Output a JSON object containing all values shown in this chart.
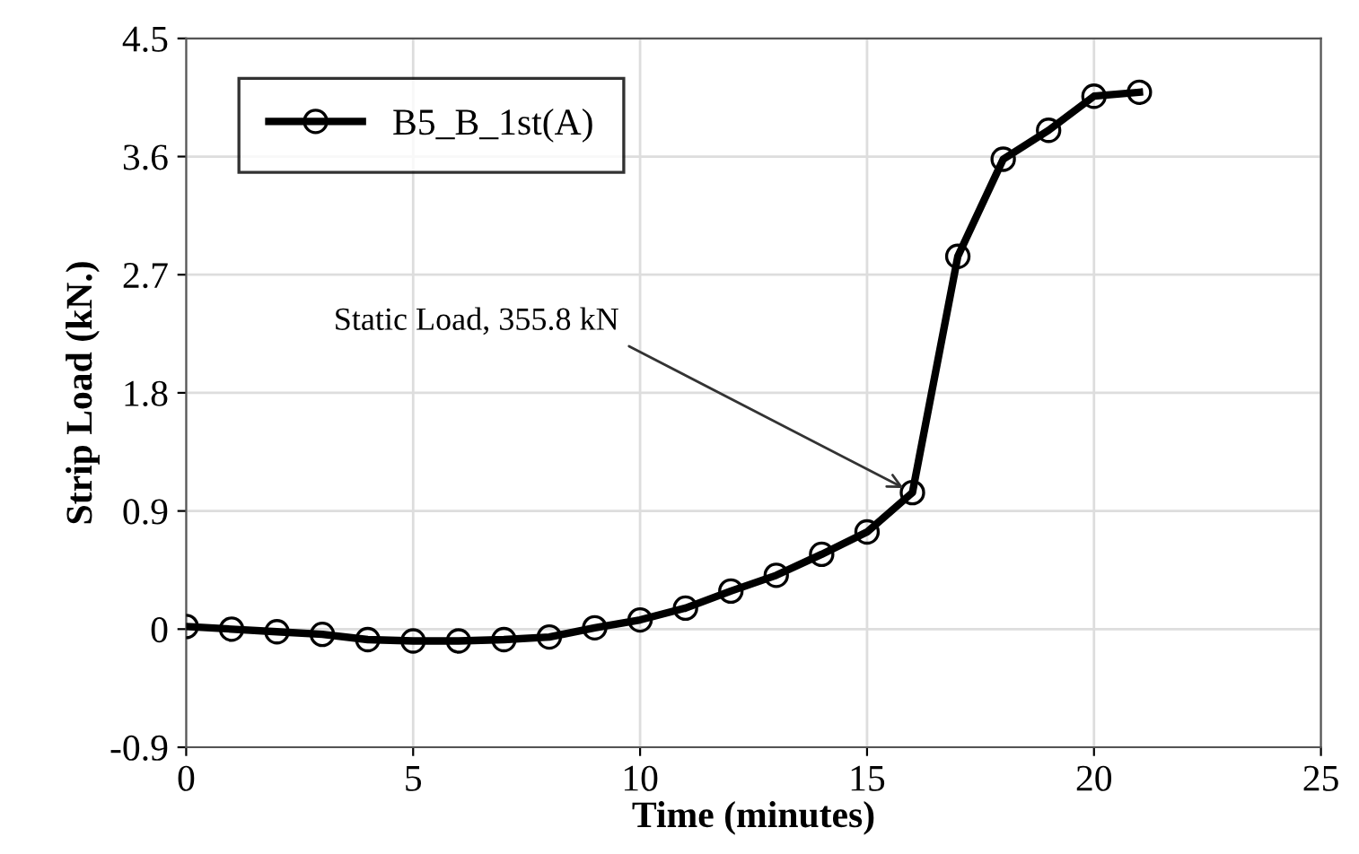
{
  "chart_data": {
    "type": "line",
    "xlabel": "Time (minutes)",
    "ylabel": "Strip Load (kN.)",
    "x": [
      0,
      1,
      2,
      3,
      4,
      5,
      6,
      7,
      8,
      9,
      10,
      11,
      12,
      13,
      14,
      15,
      16,
      17,
      18,
      19,
      20,
      21
    ],
    "series": [
      {
        "name": "B5_B_1st(A)",
        "color": "#000000",
        "values": [
          0.02,
          0.0,
          -0.02,
          -0.04,
          -0.08,
          -0.09,
          -0.09,
          -0.08,
          -0.06,
          0.01,
          0.07,
          0.16,
          0.29,
          0.41,
          0.57,
          0.74,
          1.04,
          2.84,
          3.58,
          3.8,
          4.06,
          4.09
        ]
      }
    ],
    "xlim": [
      0,
      25
    ],
    "xticks": [
      0,
      5,
      10,
      15,
      20,
      25
    ],
    "ylim": [
      -0.9,
      4.5
    ],
    "yticks": [
      {
        "value": -0.9,
        "label": "-0.9"
      },
      0,
      0.9,
      1.8,
      2.7,
      3.6,
      4.5
    ],
    "grid": true,
    "legend": "top left",
    "marker": "circle",
    "line_style": "solid",
    "annotations": [
      {
        "text": "Static Load, 355.8 kN",
        "x": 16,
        "y": 1.04
      }
    ]
  }
}
